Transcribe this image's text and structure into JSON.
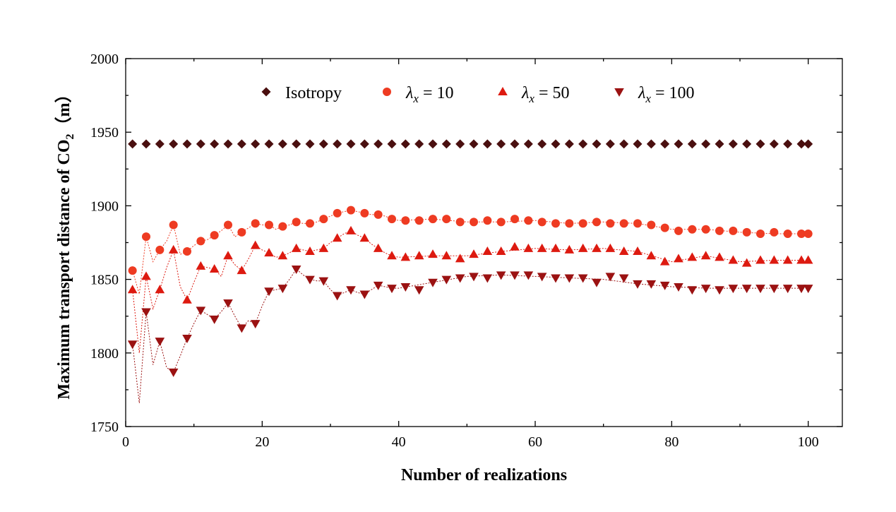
{
  "chart_data": {
    "type": "scatter",
    "xlabel": "Number of realizations",
    "ylabel": "Maximum transport distance of CO",
    "ylabel_sub": "2",
    "ylabel_unit": "（m）",
    "xlim": [
      0,
      105
    ],
    "ylim": [
      1750,
      2000
    ],
    "xticks": [
      0,
      20,
      40,
      60,
      80,
      100
    ],
    "yticks": [
      1750,
      1800,
      1850,
      1900,
      1950,
      2000
    ],
    "grid": false,
    "legend_position": "top",
    "colors": {
      "isotropy": "#4a0f0f",
      "lx10": "#ee3b22",
      "lx50": "#dd1a10",
      "lx100": "#9b1212"
    },
    "legend": [
      {
        "key": "isotropy",
        "label": "Isotropy",
        "marker": "diamond"
      },
      {
        "key": "lx10",
        "lambda": "λ",
        "sub": "x",
        "label": " = 10",
        "marker": "circle"
      },
      {
        "key": "lx50",
        "lambda": "λ",
        "sub": "x",
        "label": " = 50",
        "marker": "triangle-up"
      },
      {
        "key": "lx100",
        "lambda": "λ",
        "sub": "x",
        "label": " = 100",
        "marker": "triangle-down"
      }
    ],
    "series": [
      {
        "key": "isotropy",
        "name": "Isotropy",
        "marker": "diamond",
        "x": [
          1,
          3,
          5,
          7,
          9,
          11,
          13,
          15,
          17,
          19,
          21,
          23,
          25,
          27,
          29,
          31,
          33,
          35,
          37,
          39,
          41,
          43,
          45,
          47,
          49,
          51,
          53,
          55,
          57,
          59,
          61,
          63,
          65,
          67,
          69,
          71,
          73,
          75,
          77,
          79,
          81,
          83,
          85,
          87,
          89,
          91,
          93,
          95,
          97,
          99,
          100
        ],
        "y": [
          1942,
          1942,
          1942,
          1942,
          1942,
          1942,
          1942,
          1942,
          1942,
          1942,
          1942,
          1942,
          1942,
          1942,
          1942,
          1942,
          1942,
          1942,
          1942,
          1942,
          1942,
          1942,
          1942,
          1942,
          1942,
          1942,
          1942,
          1942,
          1942,
          1942,
          1942,
          1942,
          1942,
          1942,
          1942,
          1942,
          1942,
          1942,
          1942,
          1942,
          1942,
          1942,
          1942,
          1942,
          1942,
          1942,
          1942,
          1942,
          1942,
          1942,
          1942
        ]
      },
      {
        "key": "lx10",
        "name": "λx = 10",
        "marker": "circle",
        "x": [
          1,
          3,
          5,
          7,
          9,
          11,
          13,
          15,
          17,
          19,
          21,
          23,
          25,
          27,
          29,
          31,
          33,
          35,
          37,
          39,
          41,
          43,
          45,
          47,
          49,
          51,
          53,
          55,
          57,
          59,
          61,
          63,
          65,
          67,
          69,
          71,
          73,
          75,
          77,
          79,
          81,
          83,
          85,
          87,
          89,
          91,
          93,
          95,
          97,
          99,
          100
        ],
        "y": [
          1856,
          1879,
          1870,
          1887,
          1869,
          1876,
          1880,
          1887,
          1882,
          1888,
          1887,
          1886,
          1889,
          1888,
          1891,
          1895,
          1897,
          1895,
          1894,
          1891,
          1890,
          1890,
          1891,
          1891,
          1889,
          1889,
          1890,
          1889,
          1891,
          1890,
          1889,
          1888,
          1888,
          1888,
          1889,
          1888,
          1888,
          1888,
          1887,
          1885,
          1883,
          1884,
          1884,
          1883,
          1883,
          1882,
          1881,
          1882,
          1881,
          1881,
          1881
        ],
        "dense_x": [
          1,
          2,
          3,
          4,
          5,
          6,
          7,
          8,
          9,
          10,
          11,
          12,
          13,
          14,
          15,
          16,
          17,
          18,
          19,
          20,
          21,
          22,
          23,
          24,
          25,
          26,
          27,
          28,
          29,
          30,
          31,
          32,
          33,
          34,
          35,
          36,
          37,
          38,
          39,
          40,
          45,
          50,
          55,
          60,
          65,
          70,
          75,
          80,
          85,
          90,
          95,
          100
        ],
        "dense_y": [
          1856,
          1840,
          1879,
          1862,
          1870,
          1876,
          1887,
          1867,
          1869,
          1873,
          1876,
          1877,
          1880,
          1883,
          1887,
          1879,
          1882,
          1885,
          1888,
          1887,
          1887,
          1884,
          1886,
          1887,
          1889,
          1888,
          1888,
          1889,
          1891,
          1893,
          1895,
          1896,
          1897,
          1896,
          1895,
          1894,
          1894,
          1893,
          1891,
          1890,
          1891,
          1889,
          1889,
          1890,
          1888,
          1889,
          1888,
          1884,
          1884,
          1882,
          1881,
          1881
        ]
      },
      {
        "key": "lx50",
        "name": "λx = 50",
        "marker": "triangle-up",
        "x": [
          1,
          3,
          5,
          7,
          9,
          11,
          13,
          15,
          17,
          19,
          21,
          23,
          25,
          27,
          29,
          31,
          33,
          35,
          37,
          39,
          41,
          43,
          45,
          47,
          49,
          51,
          53,
          55,
          57,
          59,
          61,
          63,
          65,
          67,
          69,
          71,
          73,
          75,
          77,
          79,
          81,
          83,
          85,
          87,
          89,
          91,
          93,
          95,
          97,
          99,
          100
        ],
        "y": [
          1843,
          1852,
          1843,
          1870,
          1836,
          1859,
          1857,
          1866,
          1856,
          1873,
          1868,
          1866,
          1871,
          1869,
          1871,
          1878,
          1883,
          1878,
          1871,
          1866,
          1865,
          1866,
          1867,
          1866,
          1864,
          1867,
          1869,
          1869,
          1872,
          1871,
          1871,
          1871,
          1870,
          1871,
          1871,
          1871,
          1869,
          1869,
          1866,
          1862,
          1864,
          1865,
          1866,
          1865,
          1863,
          1861,
          1863,
          1863,
          1863,
          1863,
          1863
        ],
        "dense_x": [
          1,
          2,
          3,
          4,
          5,
          6,
          7,
          8,
          9,
          10,
          11,
          12,
          13,
          14,
          15,
          16,
          17,
          18,
          19,
          20,
          21,
          22,
          23,
          24,
          25,
          26,
          27,
          28,
          29,
          30,
          31,
          32,
          33,
          34,
          35,
          36,
          37,
          38,
          39,
          40,
          45,
          50,
          55,
          60,
          65,
          70,
          75,
          80,
          85,
          90,
          95,
          100
        ],
        "dense_y": [
          1843,
          1800,
          1852,
          1830,
          1843,
          1858,
          1870,
          1845,
          1836,
          1848,
          1859,
          1858,
          1857,
          1852,
          1866,
          1860,
          1856,
          1864,
          1873,
          1870,
          1868,
          1865,
          1866,
          1868,
          1871,
          1870,
          1869,
          1870,
          1871,
          1875,
          1878,
          1881,
          1883,
          1880,
          1878,
          1874,
          1871,
          1868,
          1866,
          1865,
          1866,
          1866,
          1869,
          1871,
          1870,
          1871,
          1869,
          1862,
          1866,
          1862,
          1863,
          1863
        ]
      },
      {
        "key": "lx100",
        "name": "λx = 100",
        "marker": "triangle-down",
        "x": [
          1,
          3,
          5,
          7,
          9,
          11,
          13,
          15,
          17,
          19,
          21,
          23,
          25,
          27,
          29,
          31,
          33,
          35,
          37,
          39,
          41,
          43,
          45,
          47,
          49,
          51,
          53,
          55,
          57,
          59,
          61,
          63,
          65,
          67,
          69,
          71,
          73,
          75,
          77,
          79,
          81,
          83,
          85,
          87,
          89,
          91,
          93,
          95,
          97,
          99,
          100
        ],
        "y": [
          1806,
          1828,
          1808,
          1787,
          1810,
          1829,
          1823,
          1834,
          1817,
          1820,
          1842,
          1844,
          1857,
          1850,
          1849,
          1839,
          1843,
          1840,
          1846,
          1844,
          1845,
          1843,
          1848,
          1850,
          1851,
          1852,
          1851,
          1853,
          1853,
          1853,
          1852,
          1851,
          1851,
          1851,
          1848,
          1852,
          1851,
          1847,
          1847,
          1846,
          1845,
          1843,
          1844,
          1843,
          1844,
          1844,
          1844,
          1844,
          1844,
          1844,
          1844
        ],
        "dense_x": [
          1,
          2,
          3,
          4,
          5,
          6,
          7,
          8,
          9,
          10,
          11,
          12,
          13,
          14,
          15,
          16,
          17,
          18,
          19,
          20,
          21,
          22,
          23,
          24,
          25,
          26,
          27,
          28,
          29,
          30,
          31,
          32,
          33,
          34,
          35,
          36,
          37,
          38,
          39,
          40,
          45,
          50,
          55,
          60,
          65,
          70,
          75,
          80,
          85,
          90,
          95,
          100
        ],
        "dense_y": [
          1806,
          1766,
          1828,
          1792,
          1808,
          1790,
          1787,
          1798,
          1810,
          1820,
          1829,
          1826,
          1823,
          1828,
          1834,
          1825,
          1817,
          1822,
          1820,
          1832,
          1842,
          1843,
          1844,
          1850,
          1857,
          1853,
          1850,
          1849,
          1849,
          1843,
          1839,
          1841,
          1843,
          1841,
          1840,
          1843,
          1846,
          1845,
          1844,
          1844,
          1848,
          1852,
          1853,
          1852,
          1851,
          1850,
          1847,
          1845,
          1844,
          1844,
          1844,
          1844
        ]
      }
    ]
  }
}
